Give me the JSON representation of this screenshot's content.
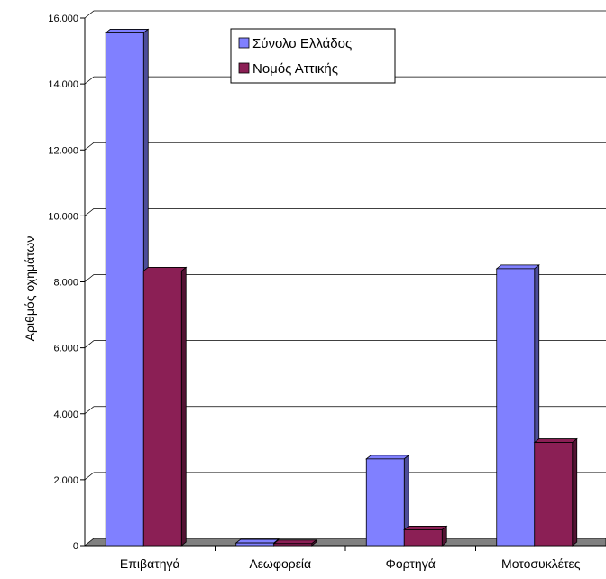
{
  "chart_data": {
    "type": "bar",
    "title": "",
    "xlabel": "",
    "ylabel": "Αριθμός οχημάτων",
    "categories": [
      "Επιβατηγά",
      "Λεωφορεία",
      "Φορτηγά",
      "Μοτοσυκλέτες"
    ],
    "series": [
      {
        "name": "Σύνολο Ελλάδος",
        "values": [
          15550,
          80,
          2630,
          8400
        ],
        "color": "#8080ff"
      },
      {
        "name": "Νομός Αττικής",
        "values": [
          8330,
          60,
          480,
          3130
        ],
        "color": "#8b1f55"
      }
    ],
    "ylim": [
      0,
      16000
    ],
    "yticks": [
      0,
      2000,
      4000,
      6000,
      8000,
      10000,
      12000,
      14000,
      16000
    ],
    "ytick_labels": [
      "0",
      "2.000",
      "4.000",
      "6.000",
      "8.000",
      "10.000",
      "12.000",
      "14.000",
      "16.000"
    ],
    "grid": true,
    "legend_position": "top-center",
    "style": "3d-bar"
  }
}
